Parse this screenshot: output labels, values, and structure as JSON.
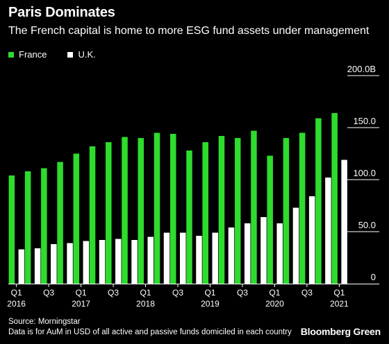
{
  "header": {
    "title": "Paris Dominates",
    "subtitle": "The French capital is home to more ESG fund assets under management"
  },
  "footer": {
    "source": "Source: Morningstar",
    "note": "Data is for AuM in USD of all active and passive funds domiciled in each country",
    "brand": "Bloomberg Green"
  },
  "colors": {
    "france": "#2ddc2d",
    "uk": "#ffffff",
    "background": "#000000"
  },
  "chart_data": {
    "type": "bar",
    "title": "Paris Dominates",
    "subtitle": "The French capital is home to more ESG fund assets under management",
    "x_tick_labels": [
      {
        "index": 0,
        "quarter": "Q1",
        "year": "2016"
      },
      {
        "index": 2,
        "quarter": "Q3",
        "year": ""
      },
      {
        "index": 4,
        "quarter": "Q1",
        "year": "2017"
      },
      {
        "index": 6,
        "quarter": "Q3",
        "year": ""
      },
      {
        "index": 8,
        "quarter": "Q1",
        "year": "2018"
      },
      {
        "index": 10,
        "quarter": "Q3",
        "year": ""
      },
      {
        "index": 12,
        "quarter": "Q1",
        "year": "2019"
      },
      {
        "index": 14,
        "quarter": "Q3",
        "year": ""
      },
      {
        "index": 16,
        "quarter": "Q1",
        "year": "2020"
      },
      {
        "index": 18,
        "quarter": "Q3",
        "year": ""
      },
      {
        "index": 20,
        "quarter": "Q1",
        "year": "2021"
      }
    ],
    "ylim": [
      0,
      200
    ],
    "y_ticks": [
      {
        "value": 0,
        "label": "0"
      },
      {
        "value": 50,
        "label": "50.0"
      },
      {
        "value": 100,
        "label": "100.0"
      },
      {
        "value": 150,
        "label": "150.0"
      },
      {
        "value": 200,
        "label": "200.0B"
      }
    ],
    "y_axis_side": "right",
    "legend_position": "top-left",
    "grid": false,
    "series": [
      {
        "name": "France",
        "values": [
          104,
          108,
          111,
          117,
          125,
          132,
          136,
          141,
          140,
          145,
          144,
          128,
          136,
          142,
          140,
          147,
          123,
          140,
          145,
          159,
          164
        ]
      },
      {
        "name": "U.K.",
        "values": [
          33,
          34,
          38,
          39,
          41,
          42,
          43,
          42,
          45,
          49,
          49,
          46,
          49,
          54,
          58,
          64,
          58,
          73,
          84,
          102,
          119
        ]
      }
    ]
  }
}
